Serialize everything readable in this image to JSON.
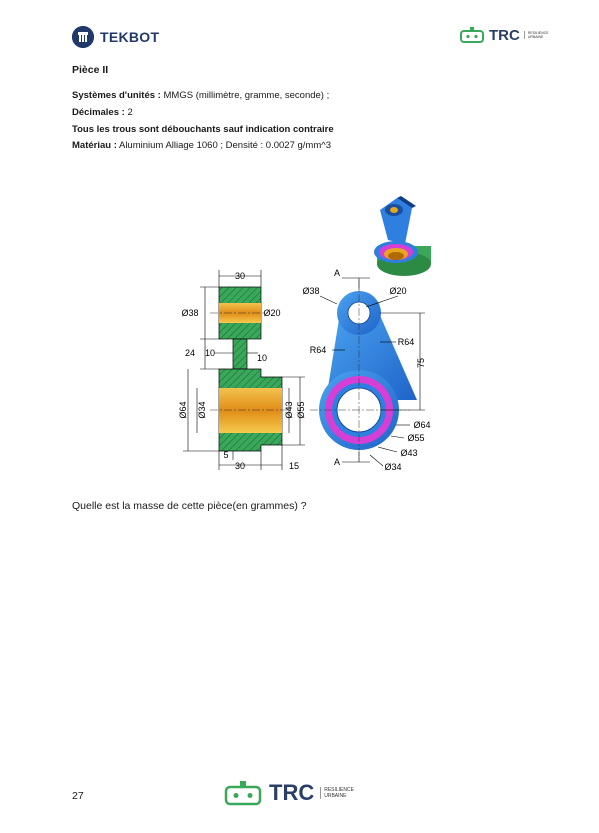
{
  "header": {
    "brand_left": "TEKBOT",
    "brand_right": "TRC",
    "brand_right_sub1": "RESILIENCE",
    "brand_right_sub2": "URBAINE"
  },
  "piece": {
    "title": "Pièce II",
    "units_label": "Systèmes d'unités :",
    "units_value": " MMGS (millimètre, gramme, seconde) ;",
    "decimals_label": "Décimales :",
    "decimals_value": " 2",
    "holes_note": "Tous les trous sont débouchants sauf indication contraire",
    "material_label": "Matériau :",
    "material_value": " Aluminium Alliage 1060 ; Densité : 0.0027 g/mm^3"
  },
  "drawing": {
    "dims": {
      "top_width": "30",
      "d38_left": "Ø38",
      "d20_left": "Ø20",
      "v24": "24",
      "h10a": "10",
      "h10b": "10",
      "d64_left": "Ø64",
      "d34_left": "Ø34",
      "d43_right": "Ø43",
      "d55_right": "Ø55",
      "b5": "5",
      "b30": "30",
      "b15": "15",
      "section_a_top": "A",
      "section_a_bottom": "A",
      "d38_front": "Ø38",
      "d20_front": "Ø20",
      "r64_left": "R64",
      "r64_right": "R64",
      "v75": "75",
      "d64_front": "Ø64",
      "d55_front": "Ø55",
      "d43_front": "Ø43",
      "d34_front": "Ø34"
    }
  },
  "question": "Quelle est la masse de cette pièce(en grammes) ?",
  "footer": {
    "page_number": "27",
    "brand": "TRC",
    "brand_sub1": "RESILIENCE",
    "brand_sub2": "URBAINE"
  },
  "colors": {
    "navy": "#213a6a",
    "green": "#3aa85a",
    "blue": "#2f7fe0",
    "magenta": "#d63fd6",
    "gold": "#e8a520"
  }
}
